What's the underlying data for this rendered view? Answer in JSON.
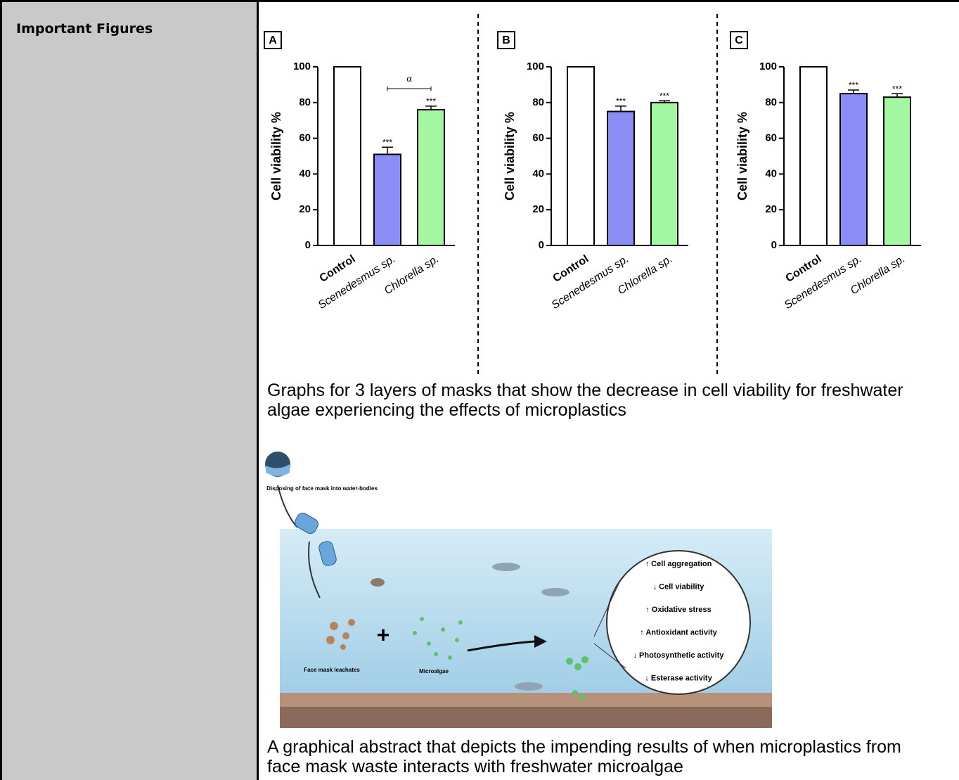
{
  "table": {
    "label": "Important Figures"
  },
  "chart_data": [
    {
      "type": "bar",
      "panel": "A",
      "ylabel": "Cell viability %",
      "categories": [
        "Control",
        "Scenedesmus sp.",
        "Chlorella sp."
      ],
      "values": [
        100,
        51,
        76
      ],
      "errors": [
        0,
        4,
        2
      ],
      "colors": [
        "#ffffff",
        "#8c8cf7",
        "#a3f7a0"
      ],
      "significance": [
        null,
        "***",
        "***"
      ],
      "bracket_label": "α",
      "ylim": [
        0,
        100
      ],
      "yticks": [
        0,
        20,
        40,
        60,
        80,
        100
      ]
    },
    {
      "type": "bar",
      "panel": "B",
      "ylabel": "Cell viability %",
      "categories": [
        "Control",
        "Scenedesmus sp.",
        "Chlorella sp."
      ],
      "values": [
        100,
        75,
        80
      ],
      "errors": [
        0,
        3,
        1
      ],
      "colors": [
        "#ffffff",
        "#8c8cf7",
        "#a3f7a0"
      ],
      "significance": [
        null,
        "***",
        "***"
      ],
      "ylim": [
        0,
        100
      ],
      "yticks": [
        0,
        20,
        40,
        60,
        80,
        100
      ]
    },
    {
      "type": "bar",
      "panel": "C",
      "ylabel": "Cell viability %",
      "categories": [
        "Control",
        "Scenedesmus sp.",
        "Chlorella sp."
      ],
      "values": [
        100,
        85,
        83
      ],
      "errors": [
        0,
        2,
        2
      ],
      "colors": [
        "#ffffff",
        "#8c8cf7",
        "#a3f7a0"
      ],
      "significance": [
        null,
        "***",
        "***"
      ],
      "ylim": [
        0,
        100
      ],
      "yticks": [
        0,
        20,
        40,
        60,
        80,
        100
      ]
    }
  ],
  "captions": [
    "Graphs for 3 layers of masks that show the decrease in cell viability for freshwater algae experiencing the effects of microplastics",
    "A graphical abstract that depicts the impending results of when microplastics from face mask waste interacts with freshwater microalgae"
  ],
  "abstract": {
    "disposal": "Disposing of face mask into water-bodies",
    "leachates": "Face mask leachates",
    "microalgae": "Microalgae",
    "plus": "+",
    "effects": [
      "↑ Cell aggregation",
      "↓ Cell viability",
      "↑ Oxidative stress",
      "↑ Antioxidant activity",
      "↓ Photosynthetic activity",
      "↓ Esterase activity"
    ]
  }
}
